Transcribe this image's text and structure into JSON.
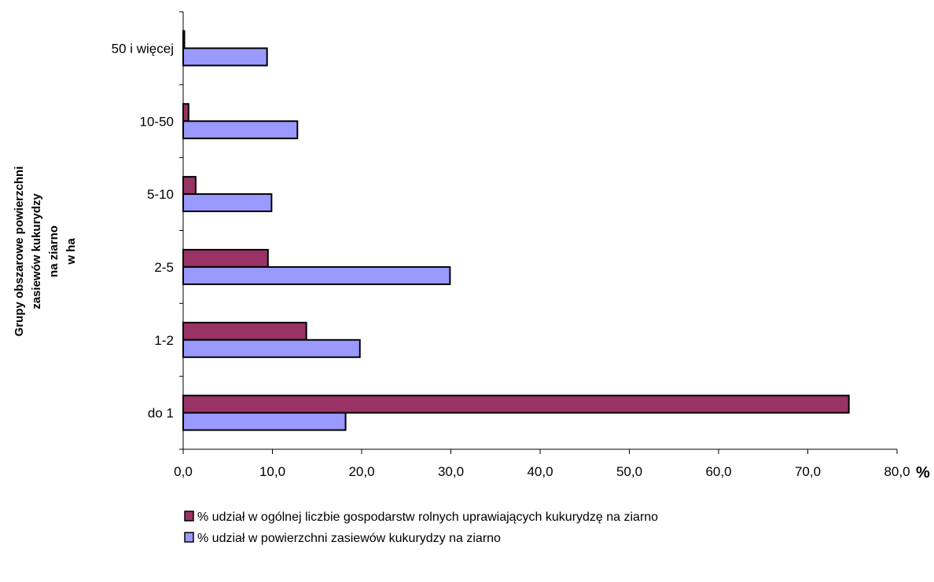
{
  "chart_data": {
    "type": "bar",
    "orientation": "horizontal",
    "categories": [
      "do 1",
      "1-2",
      "2-5",
      "5-10",
      "10-50",
      "50 i więcej"
    ],
    "series": [
      {
        "name": "% udział w ogólnej liczbie gospodarstw rolnych uprawiających kukurydzę na ziarno",
        "color": "#993366",
        "values": [
          74.6,
          13.8,
          9.5,
          1.4,
          0.6,
          0.1
        ]
      },
      {
        "name": "% udział w powierzchni zasiewów kukurydzy na ziarno",
        "color": "#9999ff",
        "values": [
          18.2,
          19.8,
          29.9,
          9.9,
          12.8,
          9.4
        ]
      }
    ],
    "xlim": [
      0,
      80
    ],
    "xticks": [
      "0,0",
      "10,0",
      "20,0",
      "30,0",
      "40,0",
      "50,0",
      "60,0",
      "70,0",
      "80,0"
    ],
    "xunit": "%",
    "ylabel_lines": [
      "Grupy obszarowe powierzchni",
      "zasiewów kukurydzy",
      "na ziarno",
      "w ha"
    ],
    "grid": false,
    "legend_position": "bottom"
  }
}
